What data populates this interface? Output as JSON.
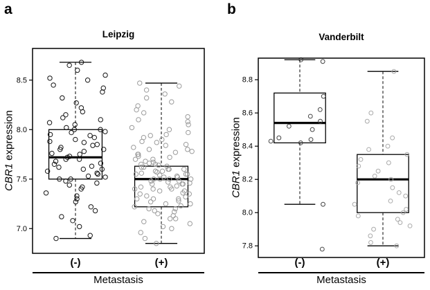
{
  "figure": {
    "panels": [
      {
        "label": "a",
        "ylabel_gene": "CBR1",
        "ylabel_rest": " expression",
        "xticks": [
          "(-)",
          "(+)"
        ],
        "xlabel": "Metastasis"
      },
      {
        "label": "b",
        "ylabel_gene": "CBR1",
        "ylabel_rest": " expression",
        "xticks": [
          "(-)",
          "(+)"
        ],
        "xlabel": "Metastasis"
      }
    ]
  },
  "chart_data": [
    {
      "type": "boxplot",
      "title": "Leipzig",
      "ylabel": "CBR1 expression",
      "xlabel": "Metastasis",
      "categories": [
        "(-)",
        "(+)"
      ],
      "ylim": [
        6.75,
        8.82
      ],
      "yticks": [
        7.0,
        7.5,
        8.0,
        8.5
      ],
      "grid": false,
      "legend": "none",
      "box_color": "#000000",
      "groups": [
        {
          "category": "(-)",
          "point_color": "#141414",
          "box": {
            "whisker_low": 6.9,
            "q1": 7.5,
            "median": 7.72,
            "q3": 8.0,
            "whisker_high": 8.68
          },
          "points": [
            6.9,
            6.93,
            7.02,
            7.08,
            7.12,
            7.18,
            7.22,
            7.27,
            7.3,
            7.33,
            7.36,
            7.4,
            7.42,
            7.44,
            7.46,
            7.48,
            7.5,
            7.5,
            7.52,
            7.53,
            7.55,
            7.56,
            7.58,
            7.6,
            7.6,
            7.62,
            7.63,
            7.65,
            7.66,
            7.68,
            7.7,
            7.7,
            7.72,
            7.73,
            7.75,
            7.76,
            7.78,
            7.8,
            7.8,
            7.82,
            7.84,
            7.85,
            7.87,
            7.88,
            7.9,
            7.92,
            7.94,
            7.95,
            7.97,
            7.98,
            8.0,
            8.0,
            8.02,
            8.05,
            8.07,
            8.1,
            8.12,
            8.15,
            8.18,
            8.22,
            8.27,
            8.32,
            8.38,
            8.42,
            8.45,
            8.5,
            8.52,
            8.55,
            8.6,
            8.65,
            8.68
          ]
        },
        {
          "category": "(+)",
          "point_color": "#9b9b9b",
          "box": {
            "whisker_low": 6.85,
            "q1": 7.22,
            "median": 7.5,
            "q3": 7.63,
            "whisker_high": 8.47
          },
          "points": [
            6.85,
            6.9,
            6.96,
            7.0,
            7.02,
            7.05,
            7.07,
            7.1,
            7.1,
            7.13,
            7.15,
            7.17,
            7.18,
            7.2,
            7.2,
            7.22,
            7.23,
            7.25,
            7.25,
            7.27,
            7.28,
            7.3,
            7.3,
            7.3,
            7.32,
            7.33,
            7.35,
            7.35,
            7.36,
            7.38,
            7.38,
            7.4,
            7.4,
            7.4,
            7.42,
            7.42,
            7.43,
            7.45,
            7.45,
            7.45,
            7.46,
            7.47,
            7.48,
            7.48,
            7.5,
            7.5,
            7.5,
            7.5,
            7.52,
            7.52,
            7.53,
            7.54,
            7.55,
            7.55,
            7.55,
            7.56,
            7.57,
            7.58,
            7.58,
            7.6,
            7.6,
            7.6,
            7.62,
            7.62,
            7.63,
            7.64,
            7.65,
            7.65,
            7.66,
            7.67,
            7.68,
            7.7,
            7.7,
            7.72,
            7.73,
            7.75,
            7.75,
            7.77,
            7.78,
            7.8,
            7.8,
            7.82,
            7.84,
            7.85,
            7.87,
            7.88,
            7.9,
            7.92,
            7.94,
            7.95,
            7.97,
            8.0,
            8.02,
            8.05,
            8.08,
            8.1,
            8.13,
            8.17,
            8.2,
            8.24,
            8.28,
            8.32,
            8.36,
            8.4,
            8.44,
            8.47
          ]
        }
      ]
    },
    {
      "type": "boxplot",
      "title": "Vanderbilt",
      "ylabel": "CBR1 expression",
      "xlabel": "Metastasis",
      "categories": [
        "(-)",
        "(+)"
      ],
      "ylim": [
        7.73,
        8.93
      ],
      "yticks": [
        7.8,
        8.0,
        8.2,
        8.4,
        8.6,
        8.8
      ],
      "grid": false,
      "legend": "none",
      "box_color": "#000000",
      "groups": [
        {
          "category": "(-)",
          "point_color": "#444444",
          "box": {
            "whisker_low": 8.05,
            "q1": 8.42,
            "median": 8.54,
            "q3": 8.72,
            "whisker_high": 8.92
          },
          "points": [
            8.92,
            8.91,
            8.7,
            8.62,
            8.58,
            8.55,
            8.52,
            8.5,
            8.45,
            8.44,
            8.43,
            8.42,
            8.05,
            7.78
          ]
        },
        {
          "category": "(+)",
          "point_color": "#aaaaaa",
          "box": {
            "whisker_low": 7.8,
            "q1": 8.0,
            "median": 8.2,
            "q3": 8.35,
            "whisker_high": 8.85
          },
          "points": [
            8.85,
            8.6,
            8.55,
            8.45,
            8.4,
            8.38,
            8.35,
            8.32,
            8.3,
            8.28,
            8.25,
            8.22,
            8.2,
            8.18,
            8.15,
            8.12,
            8.1,
            8.07,
            8.05,
            8.02,
            8.0,
            7.98,
            7.96,
            7.94,
            7.92,
            7.9,
            7.86,
            7.82,
            7.8
          ]
        }
      ]
    }
  ]
}
